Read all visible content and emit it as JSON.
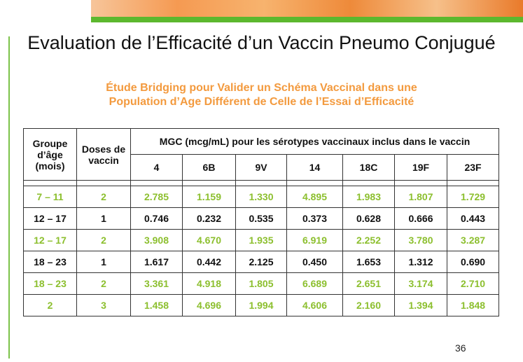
{
  "slide": {
    "title": "Evaluation de l’Efficacité d’un  Vaccin Pneumo Conjugué",
    "subtitle_line1": "Étude Bridging pour Valider un Schéma Vaccinal dans une",
    "subtitle_line2": "Population d’Age Différent de Celle de l’Essai d’Efficacité",
    "page_number": "36"
  },
  "colors": {
    "subtitle": "#f39a3e",
    "green_row": "#8cbf2e",
    "black_row": "#111111",
    "banner_green": "#5cb82e"
  },
  "table": {
    "col_age": "Groupe d’âge (mois)",
    "col_doses": "Doses de vaccin",
    "col_mgc": "MGC (mcg/mL) pour les sérotypes vaccinaux inclus dans le vaccin",
    "serotypes": [
      "4",
      "6B",
      "9V",
      "14",
      "18C",
      "19F",
      "23F"
    ],
    "rows": [
      {
        "age": "7 – 11",
        "doses": "2",
        "values": [
          "2.785",
          "1.159",
          "1.330",
          "4.895",
          "1.983",
          "1.807",
          "1.729"
        ],
        "style": "green"
      },
      {
        "age": "12 – 17",
        "doses": "1",
        "values": [
          "0.746",
          "0.232",
          "0.535",
          "0.373",
          "0.628",
          "0.666",
          "0.443"
        ],
        "style": "black"
      },
      {
        "age": "12 – 17",
        "doses": "2",
        "values": [
          "3.908",
          "4.670",
          "1.935",
          "6.919",
          "2.252",
          "3.780",
          "3.287"
        ],
        "style": "green"
      },
      {
        "age": "18 – 23",
        "doses": "1",
        "values": [
          "1.617",
          "0.442",
          "2.125",
          "0.450",
          "1.653",
          "1.312",
          "0.690"
        ],
        "style": "black"
      },
      {
        "age": "18 – 23",
        "doses": "2",
        "values": [
          "3.361",
          "4.918",
          "1.805",
          "6.689",
          "2.651",
          "3.174",
          "2.710"
        ],
        "style": "green"
      },
      {
        "age": "2",
        "doses": "3",
        "values": [
          "1.458",
          "4.696",
          "1.994",
          "4.606",
          "2.160",
          "1.394",
          "1.848"
        ],
        "style": "green"
      }
    ]
  }
}
